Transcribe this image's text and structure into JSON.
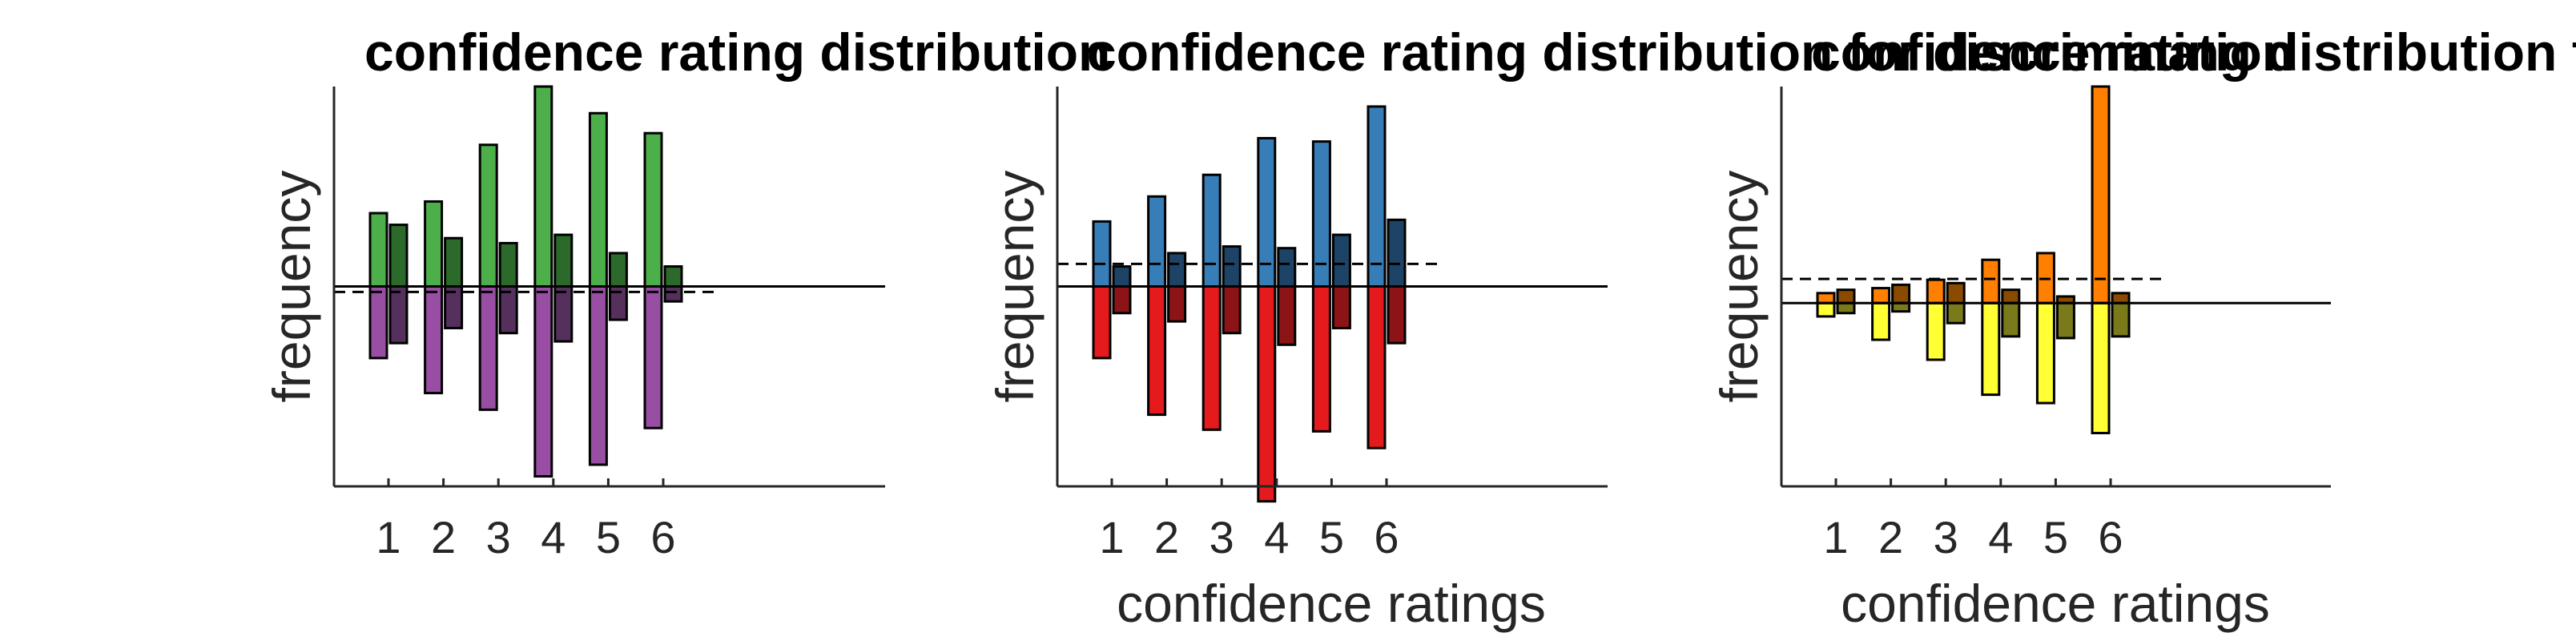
{
  "chart_data": [
    {
      "type": "bar",
      "title": "confidence rating distribution",
      "ylabel": "frequency",
      "xlabel": "",
      "categories": [
        "1",
        "2",
        "3",
        "4",
        "5",
        "6"
      ],
      "ylim": [
        -120,
        120
      ],
      "reference_line": -3.3,
      "series": [
        {
          "values": [
            44,
            51,
            85,
            120,
            104,
            92
          ],
          "color": "#4daf4a"
        },
        {
          "values": [
            37,
            29,
            26,
            31,
            20,
            12
          ],
          "color": "#2b6a2a"
        },
        {
          "values": [
            -43,
            -64,
            -74,
            -114,
            -107,
            -85
          ],
          "color": "#984ea3"
        },
        {
          "values": [
            -34,
            -25,
            -28,
            -33,
            -20,
            -9
          ],
          "color": "#55305c"
        }
      ]
    },
    {
      "type": "bar",
      "title": "confidence rating distribution for discrimination",
      "ylabel": "frequency",
      "xlabel": "confidence ratings",
      "categories": [
        "1",
        "2",
        "3",
        "4",
        "5",
        "6"
      ],
      "ylim": [
        -120,
        120
      ],
      "reference_line": 13.5,
      "series": [
        {
          "values": [
            39,
            54,
            67,
            89,
            87,
            108
          ],
          "color": "#377eb8"
        },
        {
          "values": [
            12,
            20,
            24,
            23,
            31,
            40
          ],
          "color": "#1d4466"
        },
        {
          "values": [
            -43,
            -77,
            -86,
            -129,
            -87,
            -97
          ],
          "color": "#e41a1c"
        },
        {
          "values": [
            -16,
            -21,
            -28,
            -35,
            -25,
            -34
          ],
          "color": "#8c1416"
        }
      ]
    },
    {
      "type": "bar",
      "title": "confidence rating distribution for tilt recognition",
      "ylabel": "frequency",
      "xlabel": "confidence ratings",
      "categories": [
        "1",
        "2",
        "3",
        "4",
        "5",
        "6"
      ],
      "ylim": [
        -110,
        130
      ],
      "reference_line": 14.5,
      "series": [
        {
          "values": [
            6,
            9,
            14,
            26,
            30,
            130
          ],
          "color": "#ff7f00"
        },
        {
          "values": [
            8,
            11,
            12,
            8,
            4,
            6
          ],
          "color": "#8a4a00"
        },
        {
          "values": [
            -8,
            -22,
            -34,
            -55,
            -60,
            -78
          ],
          "color": "#ffff33"
        },
        {
          "values": [
            -6,
            -5,
            -12,
            -20,
            -21,
            -20
          ],
          "color": "#7a7a1a"
        }
      ]
    }
  ]
}
